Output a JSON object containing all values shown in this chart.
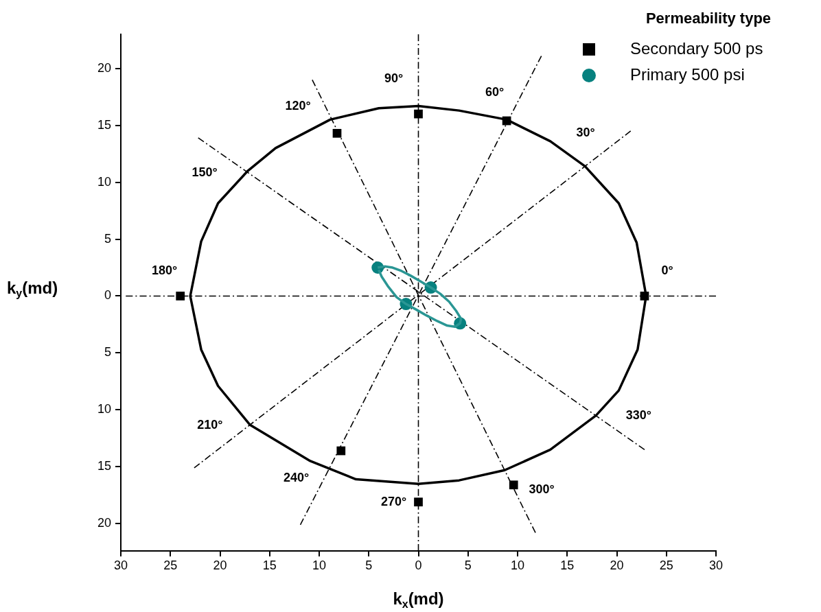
{
  "chart_data": {
    "type": "scatter",
    "xlabel": "k$_{x}$(md)",
    "ylabel": "k$_{y}$(md)",
    "legend_title": "Permeability type",
    "legend": "top right",
    "xlim": [
      -30,
      30
    ],
    "ylim": [
      -22.4,
      23
    ],
    "xticks": [
      {
        "value": -30,
        "label": "30"
      },
      {
        "value": -25,
        "label": "25"
      },
      {
        "value": -20,
        "label": "20"
      },
      {
        "value": -15,
        "label": "15"
      },
      {
        "value": -10,
        "label": "10"
      },
      {
        "value": -5,
        "label": "5"
      },
      0,
      5,
      10,
      15,
      20,
      25,
      30
    ],
    "yticks": [
      {
        "value": -20,
        "label": "20"
      },
      {
        "value": -15,
        "label": "15"
      },
      {
        "value": -10,
        "label": "10"
      },
      {
        "value": -5,
        "label": "5"
      },
      0,
      5,
      10,
      15,
      20
    ],
    "series": [
      {
        "name": "Secondary 500 ps",
        "type": "scatter",
        "marker": "square",
        "color": "#000000",
        "x": [
          22.8,
          8.9,
          0,
          -8.2,
          -24,
          -7.8,
          0,
          9.6
        ],
        "values": [
          0,
          15.4,
          16,
          14.3,
          0,
          -13.6,
          -18.1,
          -16.6
        ]
      },
      {
        "name": "Primary 500 psi",
        "type": "scatter",
        "marker": "circle",
        "color": "#07817f",
        "x": [
          -4.1,
          1.25,
          -1.25,
          4.2
        ],
        "values": [
          2.5,
          0.75,
          -0.7,
          -2.4
        ]
      },
      {
        "type": "line",
        "marker": "none",
        "color": "#000000",
        "x": [
          22.9,
          22,
          20.2,
          16.8,
          13.3,
          8.9,
          4.1,
          0,
          -4,
          -8.9,
          -14.4,
          -17.2,
          -20.2,
          -21.9,
          -23,
          -21.9,
          -20.2,
          -17,
          -10.9,
          -6.3,
          0,
          4.1,
          8.7,
          13.3,
          17.9,
          20.2,
          22.1,
          22.9
        ],
        "values": [
          0.3,
          4.7,
          8.15,
          11.4,
          13.6,
          15.5,
          16.3,
          16.7,
          16.5,
          15.5,
          13,
          11,
          8.15,
          4.8,
          0,
          -4.7,
          -7.9,
          -11.3,
          -14.5,
          -16.1,
          -16.5,
          -16.2,
          -15.3,
          -13.5,
          -10.5,
          -8.3,
          -4.7,
          -0.3
        ]
      },
      {
        "type": "line",
        "marker": "none",
        "color": "#2a9694",
        "x": [
          -4.1,
          -3.4,
          -2.6,
          -1.7,
          -0.8,
          0.2,
          1.25,
          2.2,
          3.1,
          3.8,
          4.3,
          4.2,
          3.7,
          2.9,
          1.9,
          0.8,
          -0.2,
          -1.25,
          -2.2,
          -3.1,
          -3.7,
          -4
        ],
        "values": [
          2.5,
          2.6,
          2.5,
          2.2,
          1.8,
          1.3,
          0.75,
          0.2,
          -0.5,
          -1.3,
          -2,
          -2.4,
          -2.7,
          -2.6,
          -2.2,
          -1.7,
          -1.2,
          -0.7,
          -0.1,
          0.9,
          1.7,
          2.3
        ]
      },
      {
        "type": "line",
        "marker": "none",
        "line_style": "dashed",
        "color": "#000000",
        "x": [
          -29.5,
          30
        ],
        "values": [
          0,
          0
        ]
      },
      {
        "type": "line",
        "marker": "none",
        "line_style": "dashed",
        "color": "#000000",
        "x": [
          -22.6,
          21.4
        ],
        "values": [
          -15.1,
          14.5
        ]
      },
      {
        "type": "line",
        "marker": "none",
        "line_style": "dashed",
        "color": "#000000",
        "x": [
          -11.9,
          12.4
        ],
        "values": [
          -20.1,
          21.1
        ]
      },
      {
        "type": "line",
        "marker": "none",
        "line_style": "dashed",
        "color": "#000000",
        "x": [
          0,
          0
        ],
        "values": [
          -22.4,
          23
        ]
      },
      {
        "type": "line",
        "marker": "none",
        "line_style": "dashed",
        "color": "#000000",
        "x": [
          -10.7,
          11.8
        ],
        "values": [
          19,
          -20.8
        ]
      },
      {
        "type": "line",
        "marker": "none",
        "line_style": "dashed",
        "color": "#000000",
        "x": [
          -22.2,
          22.8
        ],
        "values": [
          13.9,
          -13.5
        ]
      }
    ],
    "annotations": [
      {
        "text": "0°",
        "x": 25.1,
        "y": 0
      },
      {
        "text": "30°",
        "x": 18.4,
        "y": 12.6
      },
      {
        "text": "60°",
        "x": 9.9,
        "y": 16.9
      },
      {
        "text": "90°",
        "x": 0,
        "y": 19.1
      },
      {
        "text": "120°",
        "x": -9.9,
        "y": 17.6
      },
      {
        "text": "150°",
        "x": -20.1,
        "y": 12.6
      },
      {
        "text": "180°",
        "x": -25.6,
        "y": 0
      },
      {
        "text": "210°",
        "x": -19.5,
        "y": -13.1
      },
      {
        "text": "240°",
        "x": -10.1,
        "y": -17
      },
      {
        "text": "270°",
        "x": 0,
        "y": -18.1
      },
      {
        "text": "300°",
        "x": 10.2,
        "y": -18
      },
      {
        "text": "330°",
        "x": 20.8,
        "y": -12.3
      }
    ]
  }
}
